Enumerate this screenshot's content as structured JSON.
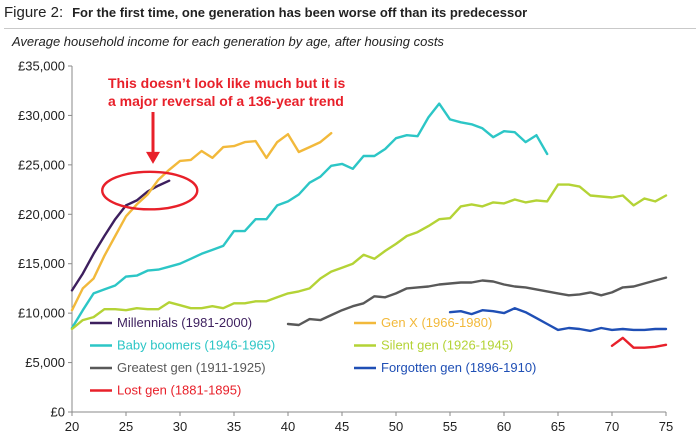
{
  "figure": {
    "label": "Figure 2:",
    "title": "For the first time, one generation has been worse off than its predecessor",
    "subtitle": "Average household income for each generation by age, after housing costs"
  },
  "chart_data": {
    "type": "line",
    "title": "For the first time, one generation has been worse off than its predecessor",
    "subtitle": "Average household income for each generation by age, after housing costs",
    "xlabel": "",
    "ylabel": "",
    "xlim": [
      20,
      75
    ],
    "ylim": [
      0,
      35000
    ],
    "x_ticks": [
      20,
      25,
      30,
      35,
      40,
      45,
      50,
      55,
      60,
      65,
      70,
      75
    ],
    "y_ticks": [
      0,
      5000,
      10000,
      15000,
      20000,
      25000,
      30000,
      35000
    ],
    "y_tick_labels": [
      "£0",
      "£5,000",
      "£10,000",
      "£15,000",
      "£20,000",
      "£25,000",
      "£30,000",
      "£35,000"
    ],
    "grid": false,
    "legend_position": "bottom-inside",
    "annotation": {
      "lines": [
        "This doesn’t look like much but it is",
        "a major reversal of a 136-year trend"
      ],
      "color": "#e8202a",
      "arrow_to": [
        27.5,
        25200
      ],
      "ellipse_center": [
        27.2,
        22400
      ],
      "ellipse_radius_x": 2.0,
      "ellipse_radius_y": 1900
    },
    "series": [
      {
        "name": "Millennials (1981-2000)",
        "color": "#3d1f5e",
        "x": [
          20,
          21,
          22,
          23,
          24,
          25,
          26,
          27,
          28,
          29
        ],
        "y": [
          12300,
          14000,
          16000,
          17800,
          19500,
          20900,
          21400,
          22300,
          22900,
          23400
        ]
      },
      {
        "name": "Gen X (1966-1980)",
        "color": "#f2b93b",
        "x": [
          20,
          21,
          22,
          23,
          24,
          25,
          26,
          27,
          28,
          29,
          30,
          31,
          32,
          33,
          34,
          35,
          36,
          37,
          38,
          39,
          40,
          41,
          42,
          43,
          44
        ],
        "y": [
          10300,
          12500,
          13500,
          15800,
          17800,
          19800,
          21000,
          22000,
          23500,
          24500,
          25400,
          25500,
          26400,
          25700,
          26800,
          26900,
          27300,
          27400,
          25700,
          27300,
          28100,
          26300,
          26800,
          27300,
          28200
        ]
      },
      {
        "name": "Baby boomers (1946-1965)",
        "color": "#2cc6c6",
        "x": [
          20,
          21,
          22,
          23,
          24,
          25,
          26,
          27,
          28,
          29,
          30,
          31,
          32,
          33,
          34,
          35,
          36,
          37,
          38,
          39,
          40,
          41,
          42,
          43,
          44,
          45,
          46,
          47,
          48,
          49,
          50,
          51,
          52,
          53,
          54,
          55,
          56,
          57,
          58,
          59,
          60,
          61,
          62,
          63,
          64
        ],
        "y": [
          8500,
          10300,
          12000,
          12400,
          12800,
          13700,
          13800,
          14300,
          14400,
          14700,
          15000,
          15500,
          16000,
          16400,
          16800,
          18300,
          18300,
          19500,
          19500,
          20900,
          21300,
          22000,
          23200,
          23800,
          24900,
          25100,
          24600,
          25900,
          25900,
          26600,
          27700,
          28000,
          27900,
          29800,
          31200,
          29600,
          29300,
          29100,
          28700,
          27800,
          28400,
          28300,
          27300,
          28000,
          26100
        ]
      },
      {
        "name": "Silent gen (1926-1945)",
        "color": "#b4d336",
        "x": [
          20,
          21,
          22,
          23,
          24,
          25,
          26,
          27,
          28,
          29,
          30,
          31,
          32,
          33,
          34,
          35,
          36,
          37,
          38,
          39,
          40,
          41,
          42,
          43,
          44,
          45,
          46,
          47,
          48,
          49,
          50,
          51,
          52,
          53,
          54,
          55,
          56,
          57,
          58,
          59,
          60,
          61,
          62,
          63,
          64,
          65,
          66,
          67,
          68,
          69,
          70,
          71,
          72,
          73,
          74,
          75
        ],
        "y": [
          8400,
          9300,
          9600,
          10400,
          10400,
          10300,
          10500,
          10400,
          10400,
          11100,
          10800,
          10500,
          10500,
          10700,
          10500,
          11000,
          11000,
          11200,
          11200,
          11600,
          12000,
          12200,
          12500,
          13500,
          14200,
          14600,
          15000,
          15900,
          15500,
          16300,
          17000,
          17800,
          18200,
          18800,
          19500,
          19600,
          20800,
          21000,
          20800,
          21200,
          21100,
          21500,
          21200,
          21400,
          21300,
          23000,
          23000,
          22800,
          21900,
          21800,
          21700,
          21900,
          20900,
          21600,
          21300,
          21900
        ]
      },
      {
        "name": "Greatest gen (1911-1925)",
        "color": "#595959",
        "x": [
          40,
          41,
          42,
          43,
          44,
          45,
          46,
          47,
          48,
          49,
          50,
          51,
          52,
          53,
          54,
          55,
          56,
          57,
          58,
          59,
          60,
          61,
          62,
          63,
          64,
          65,
          66,
          67,
          68,
          69,
          70,
          71,
          72,
          73,
          74,
          75
        ],
        "y": [
          8900,
          8800,
          9400,
          9300,
          9800,
          10300,
          10700,
          11000,
          11700,
          11600,
          12000,
          12500,
          12600,
          12700,
          12900,
          13000,
          13100,
          13100,
          13300,
          13200,
          12900,
          12700,
          12600,
          12400,
          12200,
          12000,
          11800,
          11900,
          12100,
          11800,
          12100,
          12600,
          12700,
          13000,
          13300,
          13600
        ]
      },
      {
        "name": "Forgotten gen (1896-1910)",
        "color": "#1f4fb5",
        "x": [
          55,
          56,
          57,
          58,
          59,
          60,
          61,
          62,
          63,
          64,
          65,
          66,
          67,
          68,
          69,
          70,
          71,
          72,
          73,
          74,
          75
        ],
        "y": [
          10100,
          10200,
          9900,
          10300,
          10200,
          10000,
          10500,
          10100,
          9500,
          8900,
          8300,
          8500,
          8400,
          8200,
          8500,
          8300,
          8400,
          8300,
          8300,
          8400,
          8400
        ]
      },
      {
        "name": "Lost gen (1881-1895)",
        "color": "#e8202a",
        "x": [
          70,
          71,
          72,
          73,
          74,
          75
        ],
        "y": [
          6700,
          7500,
          6500,
          6500,
          6600,
          6800
        ]
      }
    ]
  }
}
